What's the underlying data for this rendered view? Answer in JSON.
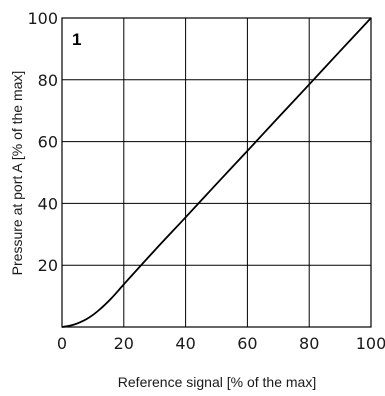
{
  "chart_data": {
    "type": "line",
    "panel_label": "1",
    "xlabel": "Reference signal [% of the max]",
    "ylabel": "Pressure at port A [% of the max]",
    "xlim": [
      0,
      100
    ],
    "ylim": [
      0,
      100
    ],
    "x_ticks": [
      0,
      20,
      40,
      60,
      80,
      100
    ],
    "y_ticks": [
      20,
      40,
      60,
      80,
      100
    ],
    "x_tick_labels": [
      "0",
      "20",
      "40",
      "60",
      "80",
      "100"
    ],
    "y_tick_labels": [
      "20",
      "40",
      "60",
      "80",
      "100"
    ],
    "grid": true,
    "series": [
      {
        "x": [
          0,
          2,
          4,
          6,
          8,
          10,
          12,
          14,
          16,
          18,
          20,
          30,
          40,
          50,
          60,
          70,
          80,
          90,
          100
        ],
        "y": [
          0,
          0.3,
          0.8,
          1.6,
          2.6,
          3.9,
          5.5,
          7.3,
          9.3,
          11.5,
          13.8,
          24.8,
          35.5,
          46.3,
          57,
          67.8,
          78.5,
          89.3,
          100
        ],
        "color": "#000000"
      }
    ]
  }
}
